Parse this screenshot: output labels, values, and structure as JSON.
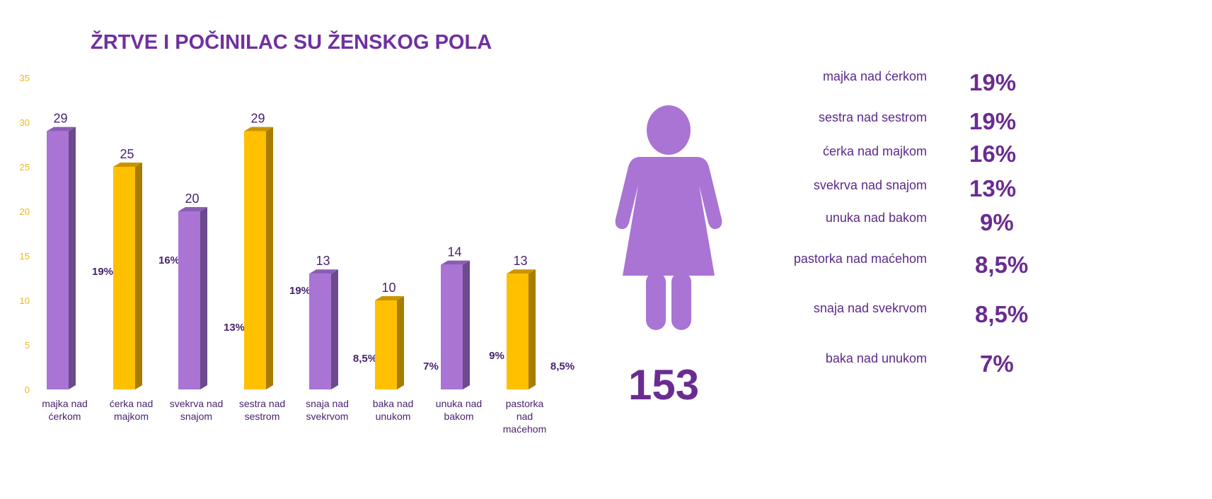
{
  "chart_data": {
    "type": "bar",
    "title": "ŽRTVE I POČINILAC SU ŽENSKOG POLA",
    "xlabel": "",
    "ylabel": "",
    "ylim": [
      0,
      35
    ],
    "yticks": [
      "0",
      "5",
      "10",
      "15",
      "20",
      "25",
      "30",
      "35"
    ],
    "categories": [
      [
        "majka nad",
        "ćerkom"
      ],
      [
        "ćerka nad",
        "majkom"
      ],
      [
        "svekrva nad",
        "snajom"
      ],
      [
        "sestra nad",
        "sestrom"
      ],
      [
        "snaja nad",
        "svekrvom"
      ],
      [
        "baka nad",
        "unukom"
      ],
      [
        "unuka nad",
        "bakom"
      ],
      [
        "pastorka",
        "nad",
        "maćehom"
      ]
    ],
    "values": [
      29,
      25,
      20,
      29,
      13,
      10,
      14,
      13
    ],
    "value_labels": [
      "29",
      "25",
      "20",
      "29",
      "13",
      "10",
      "14",
      "13"
    ],
    "percent_labels": [
      "19%",
      "16%",
      "13%",
      "19%",
      "8,5%",
      "7%",
      "9%",
      "8,5%"
    ],
    "bar_colors": [
      "#a974d4",
      "#ffc000",
      "#a974d4",
      "#ffc000",
      "#a974d4",
      "#ffc000",
      "#a974d4",
      "#ffc000"
    ],
    "grid": false
  },
  "total": "153",
  "legend": [
    {
      "label": "majka nad ćerkom",
      "value": "19%"
    },
    {
      "label": "sestra nad sestrom",
      "value": "19%"
    },
    {
      "label": "ćerka nad majkom",
      "value": "16%"
    },
    {
      "label": "svekrva nad snajom",
      "value": "13%"
    },
    {
      "label": "unuka nad bakom",
      "value": "9%"
    },
    {
      "label": "pastorka nad maćehom",
      "value": "8,5%"
    },
    {
      "label": "snaja nad svekrvom",
      "value": "8,5%"
    },
    {
      "label": "baka nad unukom",
      "value": "7%"
    }
  ],
  "colors": {
    "purple": "#a974d4",
    "gold": "#ffc000",
    "text": "#6a2c91"
  }
}
